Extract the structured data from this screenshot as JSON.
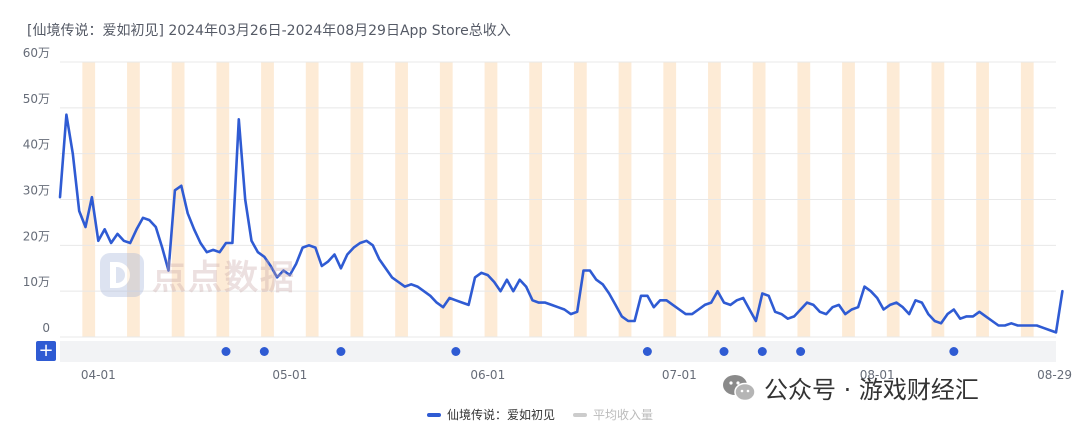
{
  "title": "[仙境传说：爱如初见] 2024年03月26日-2024年08月29日App Store总收入",
  "chart_data": {
    "type": "line",
    "x_start": "2024-03-26",
    "x_end": "2024-08-29",
    "y_tick_labels": [
      "0",
      "10万",
      "20万",
      "30万",
      "40万",
      "50万",
      "60万"
    ],
    "y_tick_values": [
      0,
      10,
      20,
      30,
      40,
      50,
      60
    ],
    "ylim": [
      0,
      60
    ],
    "x_tick_labels": [
      "04-01",
      "05-01",
      "06-01",
      "07-01",
      "08-01",
      "08-29"
    ],
    "x_tick_dates": [
      "2024-04-01",
      "2024-05-01",
      "2024-06-01",
      "2024-07-01",
      "2024-08-01",
      "2024-08-29"
    ],
    "series": [
      {
        "name": "仙境传说：爱如初见",
        "color": "#2f5bd3",
        "values": [
          30.5,
          48.5,
          40,
          27.5,
          24,
          30.5,
          21,
          23.5,
          20.5,
          22.5,
          21,
          20.5,
          23.5,
          26,
          25.5,
          24,
          19.5,
          14.5,
          32,
          33,
          27,
          23.5,
          20.5,
          18.5,
          19,
          18.5,
          20.5,
          20.5,
          47.5,
          30,
          21,
          18.5,
          17.5,
          15.5,
          13,
          14.5,
          13.5,
          16,
          19.5,
          20,
          19.5,
          15.5,
          16.5,
          18,
          15,
          18,
          19.5,
          20.5,
          21,
          20,
          17,
          15,
          13,
          12,
          11,
          11.5,
          11,
          10,
          9,
          7.5,
          6.5,
          8.5,
          8,
          7.5,
          7,
          13,
          14,
          13.5,
          12,
          10,
          12.5,
          10,
          12.5,
          11,
          8,
          7.5,
          7.5,
          7,
          6.5,
          6,
          5,
          5.5,
          14.5,
          14.5,
          12.5,
          11.5,
          9.5,
          7,
          4.5,
          3.5,
          3.5,
          9,
          9,
          6.5,
          8,
          8,
          7,
          6,
          5,
          5,
          6,
          7,
          7.5,
          10,
          7.5,
          7,
          8,
          8.5,
          6,
          3.5,
          9.5,
          9,
          5.5,
          5,
          4,
          4.5,
          6,
          7.5,
          7,
          5.5,
          5,
          6.5,
          7,
          5,
          6,
          6.5,
          11,
          10,
          8.5,
          6,
          7,
          7.5,
          6.5,
          5,
          8,
          7.5,
          5,
          3.5,
          3,
          5,
          6,
          4,
          4.5,
          4.5,
          5.5,
          4.5,
          3.5,
          2.5,
          2.5,
          3,
          2.5,
          2.5,
          2.5,
          2.5,
          2,
          1.5,
          1,
          10
        ]
      },
      {
        "name": "平均收入量",
        "color": "#cccccc",
        "values": []
      }
    ],
    "weekend_bands": true,
    "event_dates": [
      "2024-04-21",
      "2024-04-27",
      "2024-05-09",
      "2024-05-27",
      "2024-06-26",
      "2024-07-08",
      "2024-07-14",
      "2024-07-20",
      "2024-08-13"
    ],
    "grid": "horizontal"
  },
  "watermark": "点点数据",
  "footer_brand": "公众号 · 游戏财经汇",
  "zoom_button": "+",
  "colors": {
    "line": "#2f5bd3",
    "weekend_band": "#fdebd6",
    "grid": "#e8e8e8",
    "event_dot": "#2f5bd3"
  }
}
